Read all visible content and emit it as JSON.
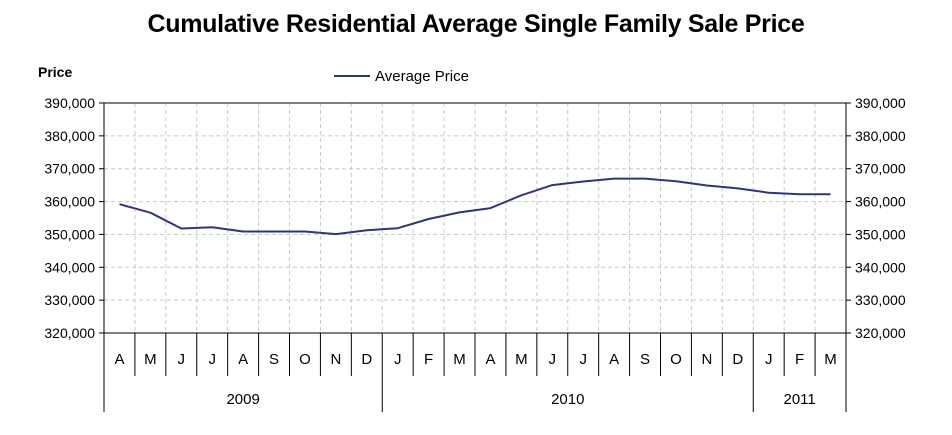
{
  "title": "Cumulative Residential Average Single Family Sale Price",
  "y_axis_label": "Price",
  "legend": {
    "series_name": "Average Price",
    "color": "#2e3480"
  },
  "chart_data": {
    "type": "line",
    "title": "Cumulative Residential Average Single Family Sale Price",
    "ylabel": "Price",
    "ylim": [
      320000,
      390000
    ],
    "y_ticks": [
      "390,000",
      "380,000",
      "370,000",
      "360,000",
      "350,000",
      "340,000",
      "330,000",
      "320,000"
    ],
    "y_tick_values": [
      390000,
      380000,
      370000,
      360000,
      350000,
      340000,
      330000,
      320000
    ],
    "dual_y_axis": true,
    "grid": true,
    "legend_position": "top-center",
    "categories": [
      "A",
      "M",
      "J",
      "J",
      "A",
      "S",
      "O",
      "N",
      "D",
      "J",
      "F",
      "M",
      "A",
      "M",
      "J",
      "J",
      "A",
      "S",
      "O",
      "N",
      "D",
      "J",
      "F",
      "M"
    ],
    "year_groups": [
      {
        "label": "2009",
        "count": 9
      },
      {
        "label": "2010",
        "count": 12
      },
      {
        "label": "2011",
        "count": 3
      }
    ],
    "series": [
      {
        "name": "Average Price",
        "color": "#2e3480",
        "values": [
          359200,
          356600,
          351800,
          352200,
          350900,
          350900,
          350900,
          350100,
          351300,
          351900,
          354700,
          356700,
          358000,
          361900,
          365000,
          366100,
          367000,
          367000,
          366200,
          364900,
          364000,
          362700,
          362200,
          362200
        ]
      }
    ]
  }
}
